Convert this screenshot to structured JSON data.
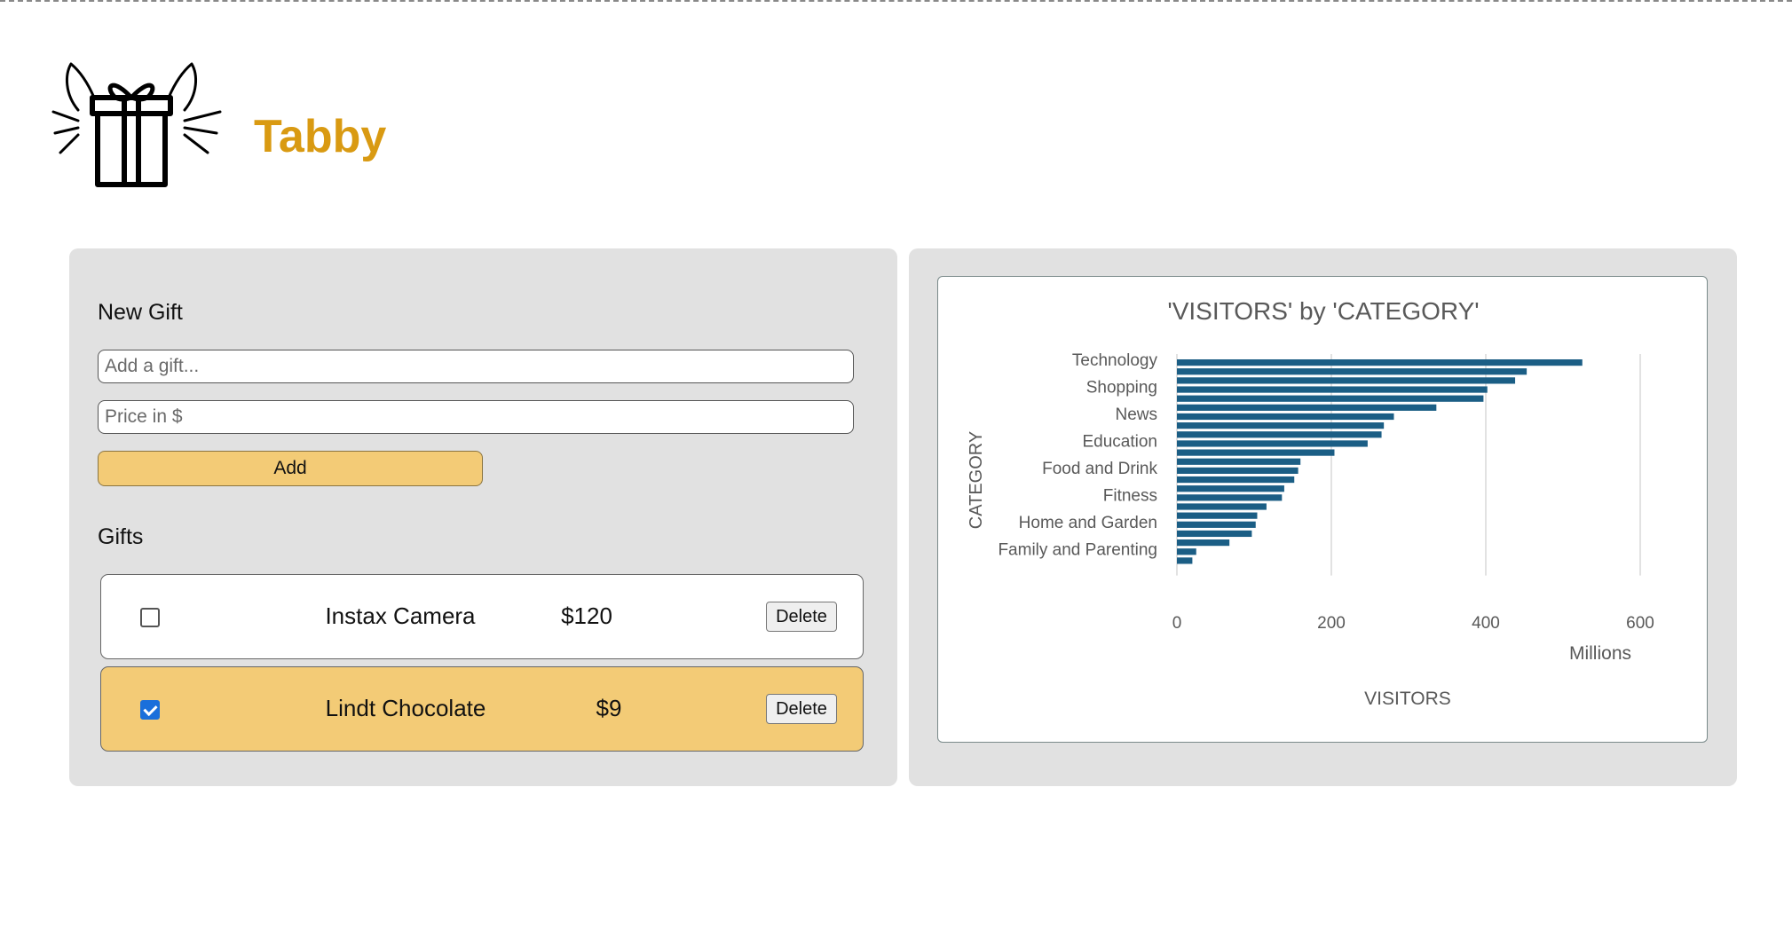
{
  "app": {
    "name": "Tabby",
    "logo_icon": "gift-cat-icon",
    "brand_color": "#d99a12"
  },
  "new_gift": {
    "title": "New Gift",
    "name_input": {
      "value": "",
      "placeholder": "Add a gift..."
    },
    "price_input": {
      "value": "",
      "placeholder": "Price in $"
    },
    "add_label": "Add"
  },
  "gifts": {
    "title": "Gifts",
    "items": [
      {
        "name": "Instax Camera",
        "price": "$120",
        "checked": false,
        "delete_label": "Delete"
      },
      {
        "name": "Lindt Chocolate",
        "price": "$9",
        "checked": true,
        "delete_label": "Delete"
      }
    ]
  },
  "colors": {
    "accent": "#f3cb76",
    "bar": "#1b5e85",
    "checkbox_checked": "#1a6fdb"
  },
  "chart_data": {
    "type": "bar",
    "orientation": "horizontal",
    "title": "'VISITORS' by 'CATEGORY'",
    "xlabel": "VISITORS",
    "ylabel": "CATEGORY",
    "x_unit_label": "Millions",
    "xlim": [
      0,
      600
    ],
    "x_ticks": [
      0,
      200,
      400,
      600
    ],
    "grid": true,
    "legend": "none",
    "categories": [
      "Technology",
      "",
      "",
      "Shopping",
      "",
      "",
      "News",
      "",
      "",
      "Education",
      "",
      "",
      "Food and Drink",
      "",
      "",
      "Fitness",
      "",
      "",
      "Home and Garden",
      "",
      "",
      "Family and Parenting",
      "",
      ""
    ],
    "values": [
      525,
      453,
      438,
      402,
      397,
      336,
      281,
      268,
      265,
      247,
      204,
      160,
      157,
      152,
      139,
      136,
      116,
      104,
      102,
      97,
      68,
      25,
      20,
      0
    ]
  }
}
